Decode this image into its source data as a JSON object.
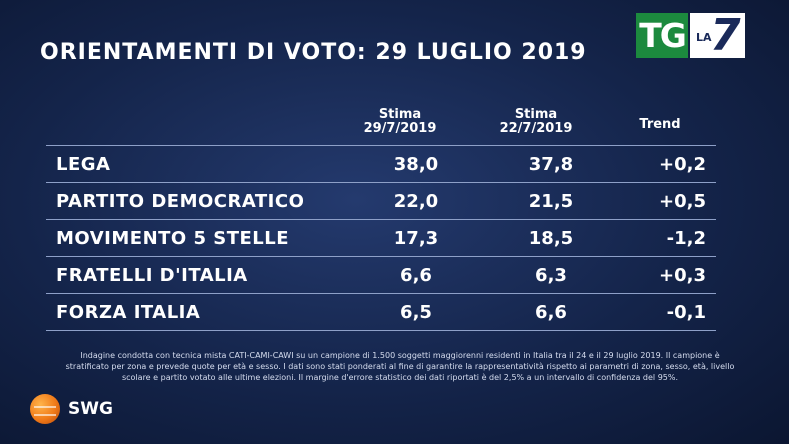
{
  "title": "ORIENTAMENTI DI VOTO: 29 LUGLIO 2019",
  "logo": {
    "tg": "TG",
    "la": "LA",
    "seven": "7"
  },
  "chart_data": {
    "type": "table",
    "columns": [
      {
        "line1": "Stima",
        "line2": "29/7/2019"
      },
      {
        "line1": "Stima",
        "line2": "22/7/2019"
      },
      {
        "line1": "Trend",
        "line2": ""
      }
    ],
    "rows": [
      {
        "party": "LEGA",
        "stima_29_7": "38,0",
        "stima_22_7": "37,8",
        "trend": "+0,2"
      },
      {
        "party": "PARTITO DEMOCRATICO",
        "stima_29_7": "22,0",
        "stima_22_7": "21,5",
        "trend": "+0,5"
      },
      {
        "party": "MOVIMENTO 5 STELLE",
        "stima_29_7": "17,3",
        "stima_22_7": "18,5",
        "trend": "-1,2"
      },
      {
        "party": "FRATELLI D'ITALIA",
        "stima_29_7": "6,6",
        "stima_22_7": "6,3",
        "trend": "+0,3"
      },
      {
        "party": "FORZA ITALIA",
        "stima_29_7": "6,5",
        "stima_22_7": "6,6",
        "trend": "-0,1"
      }
    ]
  },
  "footnote": {
    "line1": "Indagine condotta con tecnica mista CATI-CAMI-CAWI su un campione di 1.500 soggetti maggiorenni residenti in Italia tra il 24 e il 29  luglio 2019. Il campione è",
    "line2": "stratificato per zona e prevede quote per età e sesso. I dati sono stati ponderati al fine di garantire la rappresentatività rispetto ai parametri di zona, sesso, età, livello",
    "line3": "scolare e partito votato alle ultime elezioni. Il margine d'errore statistico dei dati riportati è del 2,5% a un intervallo di confidenza del 95%."
  },
  "brand": "SWG"
}
